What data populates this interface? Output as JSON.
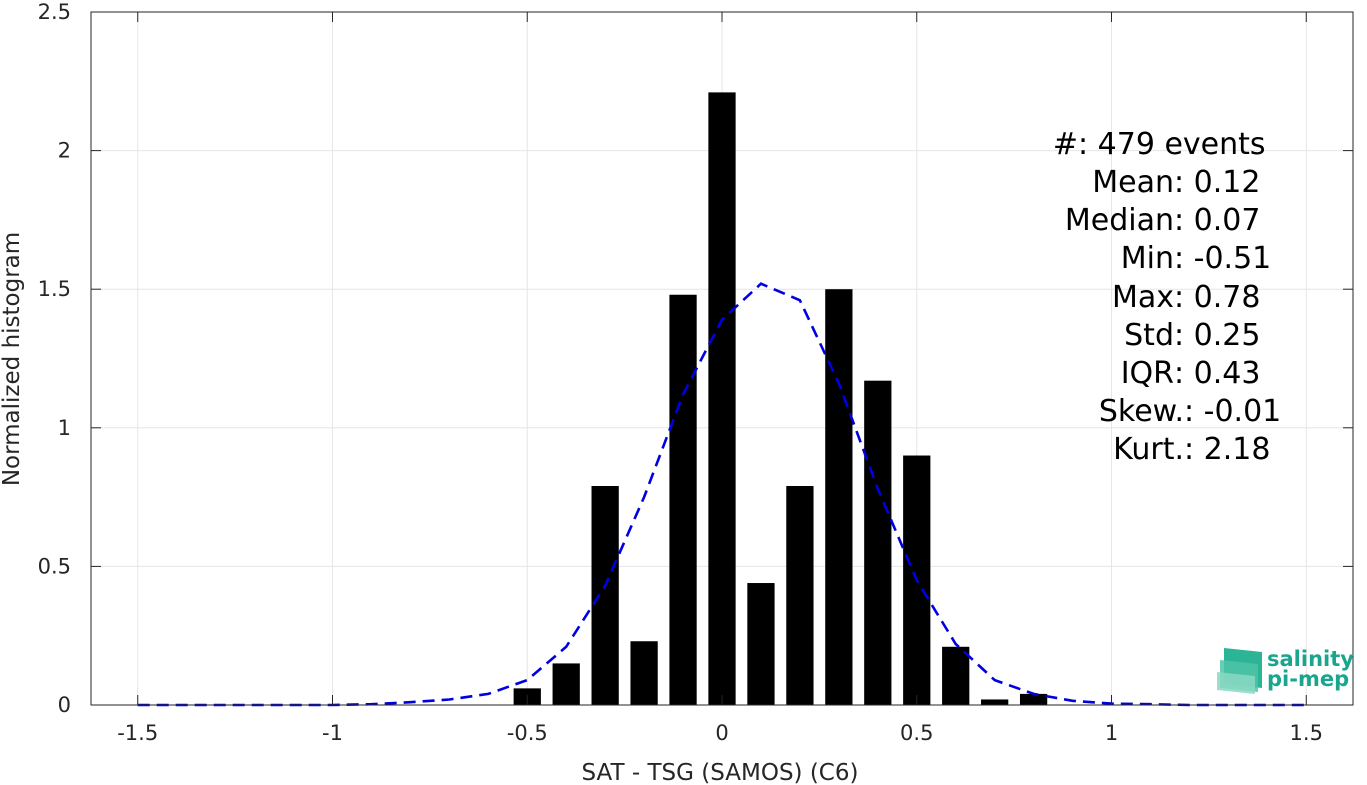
{
  "chart_data": {
    "type": "bar",
    "xlabel": "SAT - TSG (SAMOS) (C6)",
    "ylabel": "Normalized histogram",
    "xlim": [
      -1.62,
      1.62
    ],
    "ylim": [
      0,
      2.5
    ],
    "xticks": [
      -1.5,
      -1,
      -0.5,
      0,
      0.5,
      1,
      1.5
    ],
    "xtick_labels": [
      "-1.5",
      "-1",
      "-0.5",
      "0",
      "0.5",
      "1",
      "1.5"
    ],
    "yticks": [
      0,
      0.5,
      1,
      1.5,
      2,
      2.5
    ],
    "ytick_labels": [
      "0",
      "0.5",
      "1",
      "1.5",
      "2",
      "2.5"
    ],
    "grid": true,
    "bar_color": "#000000",
    "bar_width": 0.07,
    "bars": [
      {
        "x": -0.5,
        "value": 0.06
      },
      {
        "x": -0.4,
        "value": 0.15
      },
      {
        "x": -0.3,
        "value": 0.79
      },
      {
        "x": -0.2,
        "value": 0.23
      },
      {
        "x": -0.1,
        "value": 1.48
      },
      {
        "x": 0.0,
        "value": 2.21
      },
      {
        "x": 0.1,
        "value": 0.44
      },
      {
        "x": 0.2,
        "value": 0.79
      },
      {
        "x": 0.3,
        "value": 1.5
      },
      {
        "x": 0.4,
        "value": 1.17
      },
      {
        "x": 0.5,
        "value": 0.9
      },
      {
        "x": 0.6,
        "value": 0.21
      },
      {
        "x": 0.7,
        "value": 0.02
      },
      {
        "x": 0.8,
        "value": 0.04
      }
    ],
    "fit_curve": {
      "color": "#0000e0",
      "style": "dashed",
      "x": [
        -1.5,
        -1.4,
        -1.3,
        -1.2,
        -1.1,
        -1.0,
        -0.9,
        -0.8,
        -0.7,
        -0.6,
        -0.5,
        -0.4,
        -0.3,
        -0.2,
        -0.1,
        0.0,
        0.1,
        0.2,
        0.3,
        0.4,
        0.5,
        0.6,
        0.7,
        0.8,
        0.9,
        1.0,
        1.1,
        1.2,
        1.3,
        1.4,
        1.5
      ],
      "y": [
        0,
        0,
        0,
        0,
        0,
        0,
        0.003,
        0.01,
        0.02,
        0.04,
        0.09,
        0.21,
        0.43,
        0.75,
        1.12,
        1.39,
        1.52,
        1.46,
        1.16,
        0.78,
        0.45,
        0.22,
        0.09,
        0.04,
        0.015,
        0.005,
        0.003,
        0,
        0,
        0,
        0
      ]
    },
    "stats": [
      {
        "label": "#  ",
        "value": ": 479 events"
      },
      {
        "label": "Mean ",
        "value": ": 0.12"
      },
      {
        "label": "Median ",
        "value": ": 0.07"
      },
      {
        "label": "Min ",
        "value": ": -0.51"
      },
      {
        "label": "Max ",
        "value": ": 0.78"
      },
      {
        "label": "Std ",
        "value": ": 0.25"
      },
      {
        "label": "IQR ",
        "value": ": 0.43"
      },
      {
        "label": "Skew. ",
        "value": ": -0.01"
      },
      {
        "label": "Kurt. ",
        "value": ": 2.18"
      }
    ]
  },
  "logo": {
    "line1": "salinity",
    "line2": "pi-mep",
    "color": "#1aa58d"
  }
}
